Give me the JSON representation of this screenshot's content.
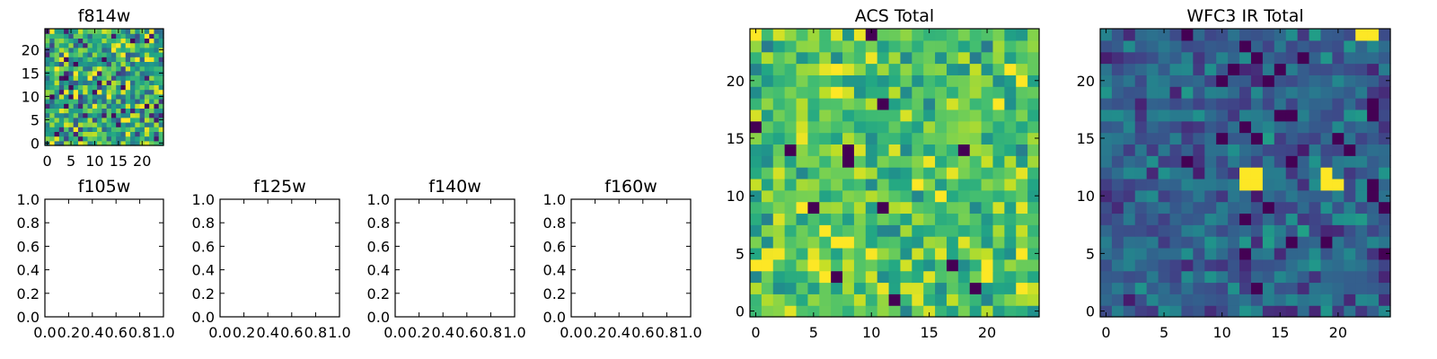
{
  "chart_data": [
    {
      "type": "heatmap",
      "title": "f814w",
      "grid_size": 25,
      "xlim": [
        -0.5,
        24.5
      ],
      "ylim": [
        -0.5,
        24.5
      ],
      "xticks": [
        0,
        5,
        10,
        15,
        20
      ],
      "yticks": [
        0,
        5,
        10,
        15,
        20
      ],
      "xticklabels": [
        "0",
        "5",
        "10",
        "15",
        "20"
      ],
      "yticklabels": [
        "0",
        "5",
        "10",
        "15",
        "20"
      ],
      "colormap": "viridis",
      "pattern": "random noise",
      "values_legible": false
    },
    {
      "type": "empty",
      "title": "f105w",
      "xlim": [
        0,
        1
      ],
      "ylim": [
        0,
        1
      ],
      "xticklabels": [
        "0.0",
        "0.2",
        "0.4",
        "0.6",
        "0.8",
        "1.0"
      ],
      "yticklabels": [
        "0.0",
        "0.2",
        "0.4",
        "0.6",
        "0.8",
        "1.0"
      ]
    },
    {
      "type": "empty",
      "title": "f125w",
      "xlim": [
        0,
        1
      ],
      "ylim": [
        0,
        1
      ],
      "xticklabels": [
        "0.0",
        "0.2",
        "0.4",
        "0.6",
        "0.8",
        "1.0"
      ],
      "yticklabels": [
        "0.0",
        "0.2",
        "0.4",
        "0.6",
        "0.8",
        "1.0"
      ]
    },
    {
      "type": "empty",
      "title": "f140w",
      "xlim": [
        0,
        1
      ],
      "ylim": [
        0,
        1
      ],
      "xticklabels": [
        "0.0",
        "0.2",
        "0.4",
        "0.6",
        "0.8",
        "1.0"
      ],
      "yticklabels": [
        "0.0",
        "0.2",
        "0.4",
        "0.6",
        "0.8",
        "1.0"
      ]
    },
    {
      "type": "empty",
      "title": "f160w",
      "xlim": [
        0,
        1
      ],
      "ylim": [
        0,
        1
      ],
      "xticklabels": [
        "0.0",
        "0.2",
        "0.4",
        "0.6",
        "0.8",
        "1.0"
      ],
      "yticklabels": [
        "0.0",
        "0.2",
        "0.4",
        "0.6",
        "0.8",
        "1.0"
      ]
    },
    {
      "type": "heatmap",
      "title": "ACS Total",
      "grid_size": 25,
      "xlim": [
        -0.5,
        24.5
      ],
      "ylim": [
        -0.5,
        24.5
      ],
      "xticks": [
        0,
        5,
        10,
        15,
        20
      ],
      "yticks": [
        0,
        5,
        10,
        15,
        20
      ],
      "xticklabels": [
        "0",
        "5",
        "10",
        "15",
        "20"
      ],
      "yticklabels": [
        "0",
        "5",
        "10",
        "15",
        "20"
      ],
      "colormap": "viridis",
      "pattern": "random noise, mostly bright",
      "dark_pixels": [
        [
          10,
          24
        ],
        [
          0,
          16
        ],
        [
          3,
          14
        ],
        [
          8,
          14
        ],
        [
          8,
          13
        ],
        [
          11,
          18
        ],
        [
          18,
          14
        ],
        [
          7,
          3
        ],
        [
          11,
          9
        ],
        [
          5,
          9
        ],
        [
          17,
          4
        ],
        [
          19,
          2
        ],
        [
          12,
          1
        ]
      ],
      "bright_pixels": [
        [
          14,
          11
        ],
        [
          23,
          20
        ],
        [
          21,
          18
        ],
        [
          22,
          21
        ],
        [
          6,
          7
        ],
        [
          7,
          6
        ],
        [
          8,
          6
        ],
        [
          6,
          3
        ],
        [
          20,
          4
        ],
        [
          20,
          3
        ]
      ],
      "values_legible": false
    },
    {
      "type": "heatmap",
      "title": "WFC3 IR Total",
      "grid_size": 25,
      "xlim": [
        -0.5,
        24.5
      ],
      "ylim": [
        -0.5,
        24.5
      ],
      "xticks": [
        0,
        5,
        10,
        15,
        20
      ],
      "yticks": [
        0,
        5,
        10,
        15,
        20
      ],
      "xticklabels": [
        "0",
        "5",
        "10",
        "15",
        "20"
      ],
      "yticklabels": [
        "0",
        "5",
        "10",
        "15",
        "20"
      ],
      "colormap": "viridis",
      "pattern": "random noise, mostly dark",
      "bright_pixels": [
        [
          12,
          12
        ],
        [
          13,
          12
        ],
        [
          12,
          11
        ],
        [
          13,
          11
        ],
        [
          19,
          12
        ],
        [
          19,
          11
        ],
        [
          20,
          11
        ],
        [
          22,
          24
        ],
        [
          23,
          24
        ]
      ],
      "dark_pixels": [
        [
          7,
          24
        ],
        [
          12,
          23
        ],
        [
          13,
          22
        ],
        [
          17,
          22
        ],
        [
          11,
          21
        ],
        [
          15,
          21
        ],
        [
          10,
          20
        ],
        [
          14,
          20
        ],
        [
          15,
          17
        ],
        [
          16,
          17
        ],
        [
          23,
          18
        ],
        [
          23,
          17
        ],
        [
          10,
          15
        ],
        [
          12,
          16
        ],
        [
          13,
          15
        ],
        [
          20,
          15
        ],
        [
          7,
          13
        ],
        [
          16,
          13
        ],
        [
          21,
          14
        ],
        [
          23,
          11
        ],
        [
          23,
          10
        ],
        [
          12,
          8
        ],
        [
          14,
          9
        ],
        [
          24,
          9
        ],
        [
          12,
          5
        ],
        [
          16,
          6
        ],
        [
          19,
          6
        ],
        [
          13,
          2
        ],
        [
          24,
          5
        ]
      ],
      "values_legible": false
    }
  ]
}
